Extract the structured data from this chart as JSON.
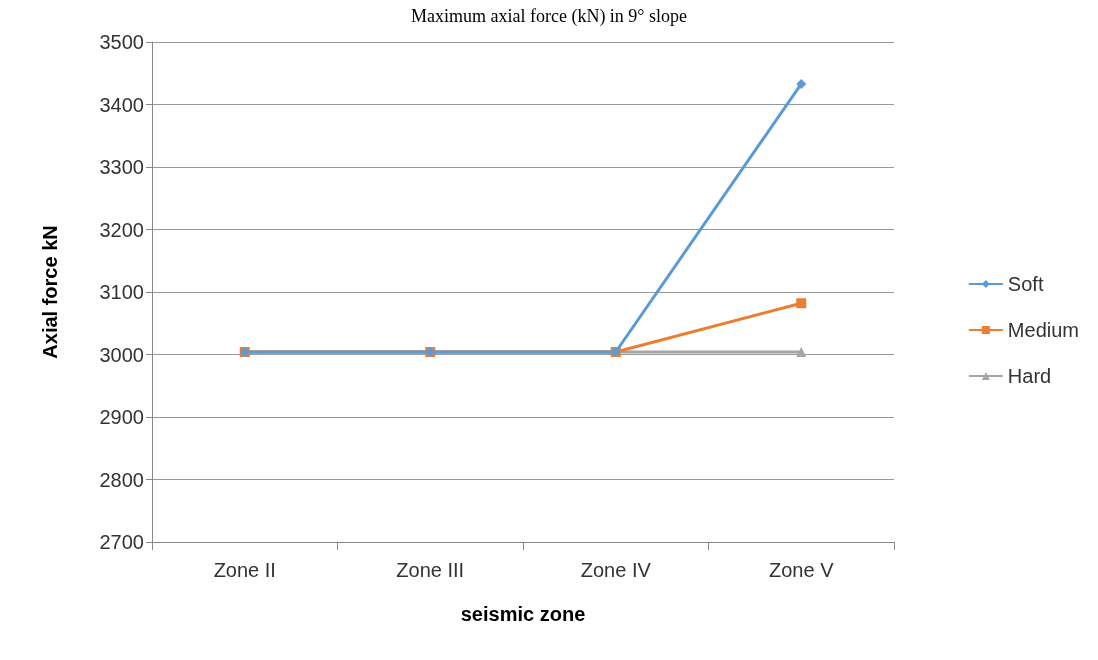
{
  "chart_data": {
    "type": "line",
    "title": "Maximum axial force (kN) in 9° slope",
    "xlabel": "seismic zone",
    "ylabel": "Axial force kN",
    "categories": [
      "Zone II",
      "Zone III",
      "Zone IV",
      "Zone V"
    ],
    "series": [
      {
        "name": "Soft",
        "color": "#5b9bd5",
        "marker": "diamond",
        "values": [
          3004,
          3004,
          3004,
          3433
        ]
      },
      {
        "name": "Medium",
        "color": "#ed7d31",
        "marker": "square",
        "values": [
          3004,
          3004,
          3004,
          3082
        ]
      },
      {
        "name": "Hard",
        "color": "#a5a5a5",
        "marker": "triangle",
        "values": [
          3004,
          3004,
          3004,
          3004
        ]
      }
    ],
    "ylim": [
      2700,
      3500
    ],
    "yticks": [
      2700,
      2800,
      2900,
      3000,
      3100,
      3200,
      3300,
      3400,
      3500
    ],
    "grid": "y",
    "legend": "right"
  }
}
